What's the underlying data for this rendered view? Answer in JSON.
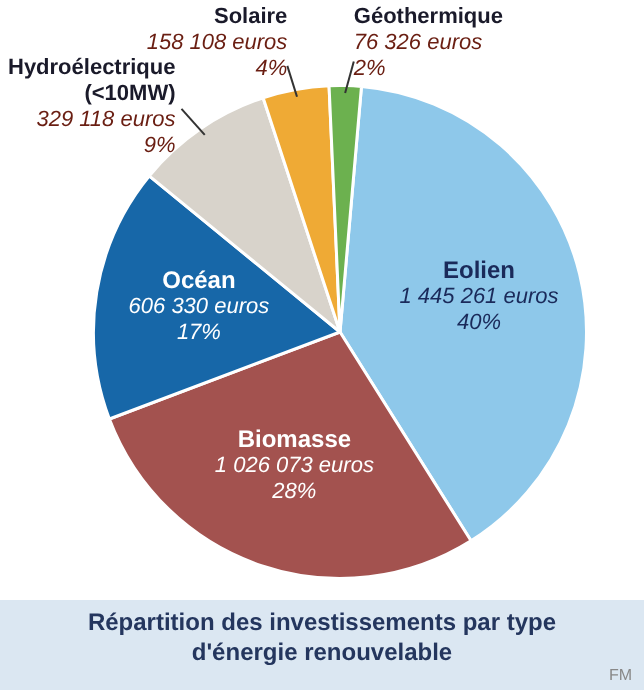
{
  "chart_data": {
    "type": "pie",
    "title": "Répartition des investissements par type d'énergie renouvelable",
    "categories": [
      "Eolien",
      "Biomasse",
      "Océan",
      "Hydroélectrique (<10MW)",
      "Solaire",
      "Géothermique"
    ],
    "values": [
      1445261,
      1026073,
      606330,
      329118,
      158108,
      76326
    ],
    "colors": [
      "#8ec8ea",
      "#a3524f",
      "#1767a8",
      "#d8d3cb",
      "#efaa35",
      "#6cb14f"
    ],
    "value_labels": [
      "1 445 261 euros\n40%",
      "1 026 073 euros\n28%",
      "606 330 euros\n17%",
      "329 118 euros\n9%",
      "158 108 euros\n4%",
      "76 326 euros\n2%"
    ],
    "annotations": [
      "FM"
    ]
  }
}
